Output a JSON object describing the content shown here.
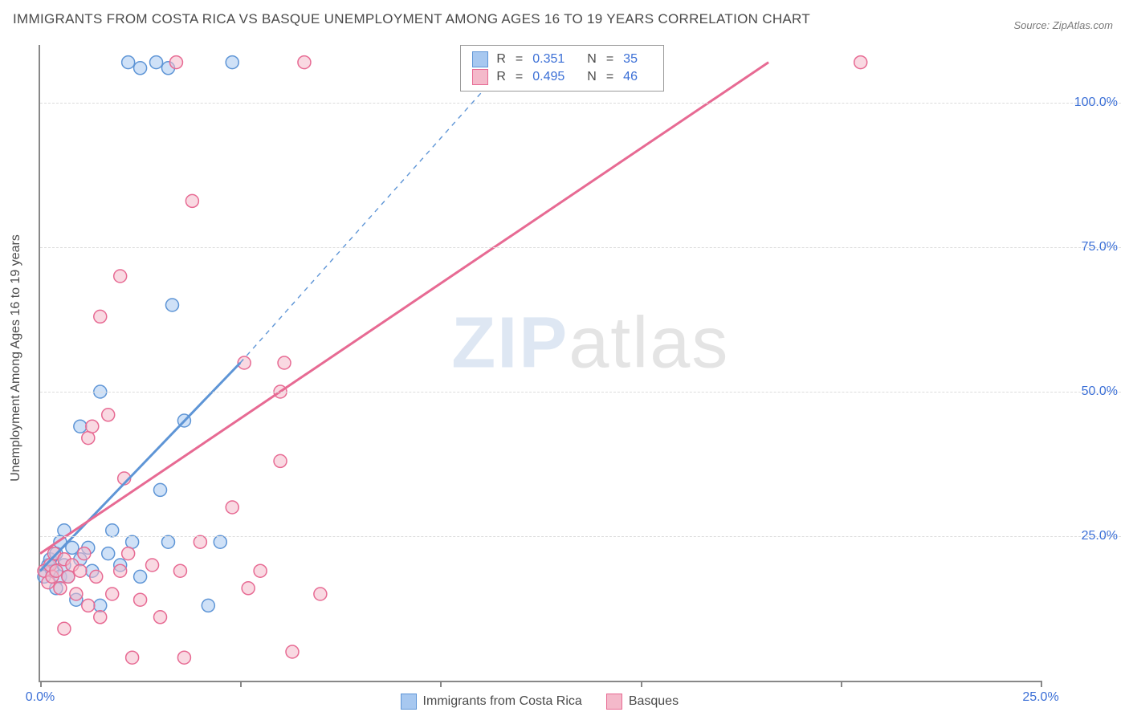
{
  "title": "IMMIGRANTS FROM COSTA RICA VS BASQUE UNEMPLOYMENT AMONG AGES 16 TO 19 YEARS CORRELATION CHART",
  "source": "Source: ZipAtlas.com",
  "ylabel": "Unemployment Among Ages 16 to 19 years",
  "watermark": {
    "zip": "ZIP",
    "atlas": "atlas"
  },
  "chart": {
    "type": "scatter",
    "background_color": "#ffffff",
    "grid_color": "#dcdcdc",
    "axis_color": "#888888",
    "tick_label_color": "#3b6fd6",
    "text_color": "#4a4a4a",
    "xlim": [
      0,
      25
    ],
    "ylim": [
      0,
      110
    ],
    "yticks": [
      25,
      50,
      75,
      100
    ],
    "ytick_labels": [
      "25.0%",
      "50.0%",
      "75.0%",
      "100.0%"
    ],
    "xticks": [
      0,
      5,
      10,
      15,
      20,
      25
    ],
    "xtick_labels": [
      "0.0%",
      "",
      "",
      "",
      "",
      "25.0%"
    ],
    "marker_radius": 8,
    "marker_opacity": 0.55,
    "series": [
      {
        "name": "Immigrants from Costa Rica",
        "color_fill": "#a7c8f0",
        "color_stroke": "#5e95d6",
        "R": "0.351",
        "N": "35",
        "trend": {
          "x1": 0,
          "y1": 19,
          "x2": 5.0,
          "y2": 55,
          "dash": false,
          "dash_ext": {
            "x2e": 11.7,
            "y2e": 107
          }
        },
        "points": [
          [
            0.1,
            18
          ],
          [
            0.2,
            20
          ],
          [
            0.3,
            19
          ],
          [
            0.25,
            21
          ],
          [
            0.4,
            16
          ],
          [
            0.5,
            18
          ],
          [
            0.4,
            22
          ],
          [
            0.6,
            20
          ],
          [
            0.7,
            18
          ],
          [
            0.9,
            14
          ],
          [
            1.0,
            21
          ],
          [
            1.2,
            23
          ],
          [
            1.3,
            19
          ],
          [
            1.5,
            13
          ],
          [
            1.7,
            22
          ],
          [
            2.0,
            20
          ],
          [
            2.3,
            24
          ],
          [
            2.5,
            18
          ],
          [
            1.0,
            44
          ],
          [
            1.5,
            50
          ],
          [
            3.0,
            33
          ],
          [
            3.2,
            24
          ],
          [
            3.6,
            45
          ],
          [
            4.2,
            13
          ],
          [
            4.5,
            24
          ],
          [
            2.2,
            107
          ],
          [
            2.5,
            106
          ],
          [
            2.9,
            107
          ],
          [
            3.2,
            106
          ],
          [
            4.8,
            107
          ],
          [
            3.3,
            65
          ],
          [
            0.6,
            26
          ],
          [
            1.8,
            26
          ],
          [
            0.8,
            23
          ],
          [
            0.5,
            24
          ]
        ]
      },
      {
        "name": "Basques",
        "color_fill": "#f4b9ca",
        "color_stroke": "#e76a93",
        "R": "0.495",
        "N": "46",
        "trend": {
          "x1": 0,
          "y1": 22,
          "x2": 18.2,
          "y2": 107,
          "dash": false
        },
        "points": [
          [
            0.1,
            19
          ],
          [
            0.2,
            17
          ],
          [
            0.25,
            20
          ],
          [
            0.3,
            18
          ],
          [
            0.35,
            22
          ],
          [
            0.4,
            19
          ],
          [
            0.5,
            16
          ],
          [
            0.6,
            21
          ],
          [
            0.7,
            18
          ],
          [
            0.8,
            20
          ],
          [
            0.9,
            15
          ],
          [
            1.0,
            19
          ],
          [
            1.1,
            22
          ],
          [
            1.2,
            13
          ],
          [
            1.4,
            18
          ],
          [
            1.5,
            11
          ],
          [
            1.8,
            15
          ],
          [
            2.0,
            19
          ],
          [
            2.2,
            22
          ],
          [
            2.5,
            14
          ],
          [
            2.8,
            20
          ],
          [
            3.0,
            11
          ],
          [
            3.5,
            19
          ],
          [
            4.0,
            24
          ],
          [
            4.8,
            30
          ],
          [
            5.2,
            16
          ],
          [
            5.5,
            19
          ],
          [
            6.0,
            38
          ],
          [
            6.3,
            5
          ],
          [
            7.0,
            15
          ],
          [
            6.6,
            107
          ],
          [
            1.2,
            42
          ],
          [
            1.3,
            44
          ],
          [
            1.7,
            46
          ],
          [
            1.5,
            63
          ],
          [
            2.0,
            70
          ],
          [
            3.8,
            83
          ],
          [
            5.1,
            55
          ],
          [
            6.0,
            50
          ],
          [
            6.1,
            55
          ],
          [
            2.1,
            35
          ],
          [
            2.3,
            4
          ],
          [
            3.6,
            4
          ],
          [
            3.4,
            107
          ],
          [
            20.5,
            107
          ],
          [
            0.6,
            9
          ]
        ]
      }
    ]
  },
  "legend_top": {
    "rows": [
      {
        "swatch_fill": "#a7c8f0",
        "swatch_stroke": "#5e95d6",
        "r_label": "R",
        "r_val": "0.351",
        "n_label": "N",
        "n_val": "35"
      },
      {
        "swatch_fill": "#f4b9ca",
        "swatch_stroke": "#e76a93",
        "r_label": "R",
        "r_val": "0.495",
        "n_label": "N",
        "n_val": "46"
      }
    ]
  },
  "legend_bottom": {
    "items": [
      {
        "swatch_fill": "#a7c8f0",
        "swatch_stroke": "#5e95d6",
        "label": "Immigrants from Costa Rica"
      },
      {
        "swatch_fill": "#f4b9ca",
        "swatch_stroke": "#e76a93",
        "label": "Basques"
      }
    ]
  }
}
